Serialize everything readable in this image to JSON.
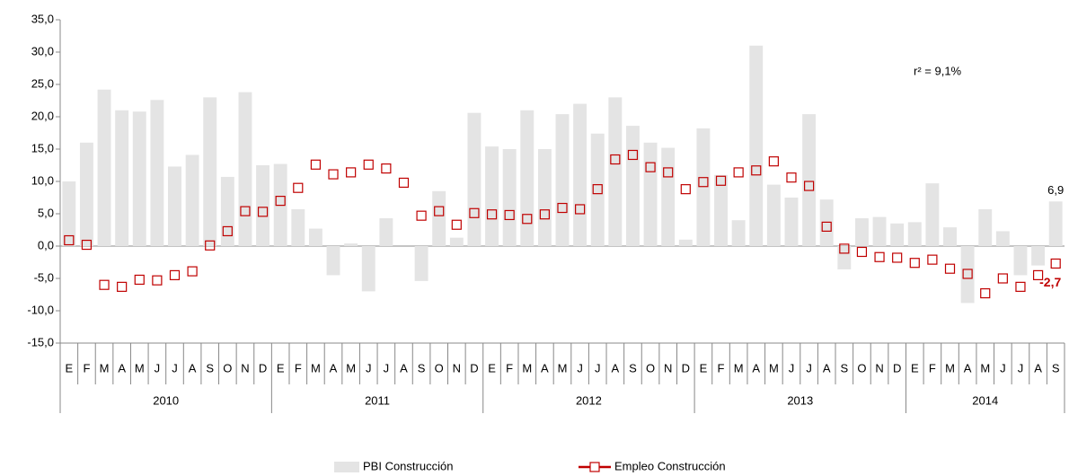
{
  "chart_data": {
    "type": "bar",
    "annotation": "r² = 9,1%",
    "categories": [
      "E",
      "F",
      "M",
      "A",
      "M",
      "J",
      "J",
      "A",
      "S",
      "O",
      "N",
      "D",
      "E",
      "F",
      "M",
      "A",
      "M",
      "J",
      "J",
      "A",
      "S",
      "O",
      "N",
      "D",
      "E",
      "F",
      "M",
      "A",
      "M",
      "J",
      "J",
      "A",
      "S",
      "O",
      "N",
      "D",
      "E",
      "F",
      "M",
      "A",
      "M",
      "J",
      "J",
      "A",
      "S",
      "O",
      "N",
      "D",
      "E",
      "F",
      "M",
      "A",
      "M",
      "J",
      "J",
      "A",
      "S"
    ],
    "years": [
      "2010",
      "2011",
      "2012",
      "2013",
      "2014"
    ],
    "ylim": [
      -15,
      35
    ],
    "yticks": [
      {
        "value": 35,
        "label": "35,0"
      },
      {
        "value": 30,
        "label": "30,0"
      },
      {
        "value": 25,
        "label": "25,0"
      },
      {
        "value": 20,
        "label": "20,0"
      },
      {
        "value": 15,
        "label": "15,0"
      },
      {
        "value": 10,
        "label": "10,0"
      },
      {
        "value": 5,
        "label": "5,0"
      },
      {
        "value": 0,
        "label": "0,0"
      },
      {
        "value": -5,
        "label": "-5,0"
      },
      {
        "value": -10,
        "label": "-10,0"
      },
      {
        "value": -15,
        "label": "-15,0"
      }
    ],
    "series": [
      {
        "name": "PBI Construcción",
        "type": "bar",
        "color": "#e4e4e4",
        "values": [
          10.0,
          16.0,
          24.2,
          21.0,
          20.8,
          22.6,
          12.3,
          14.1,
          23.0,
          10.7,
          23.8,
          12.5,
          12.7,
          5.7,
          2.7,
          -4.5,
          0.4,
          -7.0,
          4.3,
          0.0,
          -5.4,
          8.5,
          1.3,
          20.6,
          15.4,
          15.0,
          21.0,
          15.0,
          20.4,
          22.0,
          17.4,
          23.0,
          18.6,
          16.0,
          15.2,
          1.0,
          18.2,
          11.0,
          4.0,
          31.0,
          9.5,
          7.5,
          20.4,
          7.2,
          -3.6,
          4.3,
          4.5,
          3.5,
          3.7,
          9.7,
          2.9,
          -8.8,
          5.7,
          2.3,
          -4.5,
          -3.0,
          6.9
        ],
        "value_labels": [
          null,
          null,
          null,
          null,
          null,
          null,
          null,
          null,
          null,
          null,
          null,
          null,
          null,
          null,
          null,
          null,
          null,
          null,
          null,
          null,
          null,
          null,
          null,
          null,
          null,
          null,
          null,
          null,
          null,
          null,
          null,
          null,
          null,
          null,
          null,
          null,
          null,
          null,
          null,
          null,
          null,
          null,
          null,
          null,
          null,
          null,
          null,
          null,
          null,
          null,
          null,
          null,
          null,
          null,
          null,
          null,
          "6,9"
        ]
      },
      {
        "name": "Empleo Construcción",
        "type": "line",
        "color": "#c00000",
        "values": [
          0.9,
          0.2,
          -6.0,
          -6.3,
          -5.2,
          -5.3,
          -4.5,
          -3.9,
          0.1,
          2.3,
          5.4,
          5.3,
          7.0,
          9.0,
          12.6,
          11.1,
          11.4,
          12.6,
          12.0,
          9.8,
          4.7,
          5.4,
          3.3,
          5.1,
          4.9,
          4.8,
          4.2,
          4.9,
          5.9,
          5.7,
          8.8,
          13.4,
          14.1,
          12.2,
          11.4,
          8.8,
          9.9,
          10.1,
          11.4,
          11.7,
          13.1,
          10.6,
          9.3,
          3.0,
          -0.4,
          -0.9,
          -1.7,
          -1.8,
          -2.6,
          -2.1,
          -3.5,
          -4.3,
          -7.3,
          -5.0,
          -6.3,
          -4.5,
          -2.7
        ],
        "value_labels": [
          null,
          null,
          null,
          null,
          null,
          null,
          null,
          null,
          null,
          null,
          null,
          null,
          null,
          null,
          null,
          null,
          null,
          null,
          null,
          null,
          null,
          null,
          null,
          null,
          null,
          null,
          null,
          null,
          null,
          null,
          null,
          null,
          null,
          null,
          null,
          null,
          null,
          null,
          null,
          null,
          null,
          null,
          null,
          null,
          null,
          null,
          null,
          null,
          null,
          null,
          null,
          null,
          null,
          null,
          null,
          null,
          "-2,7"
        ]
      }
    ]
  }
}
